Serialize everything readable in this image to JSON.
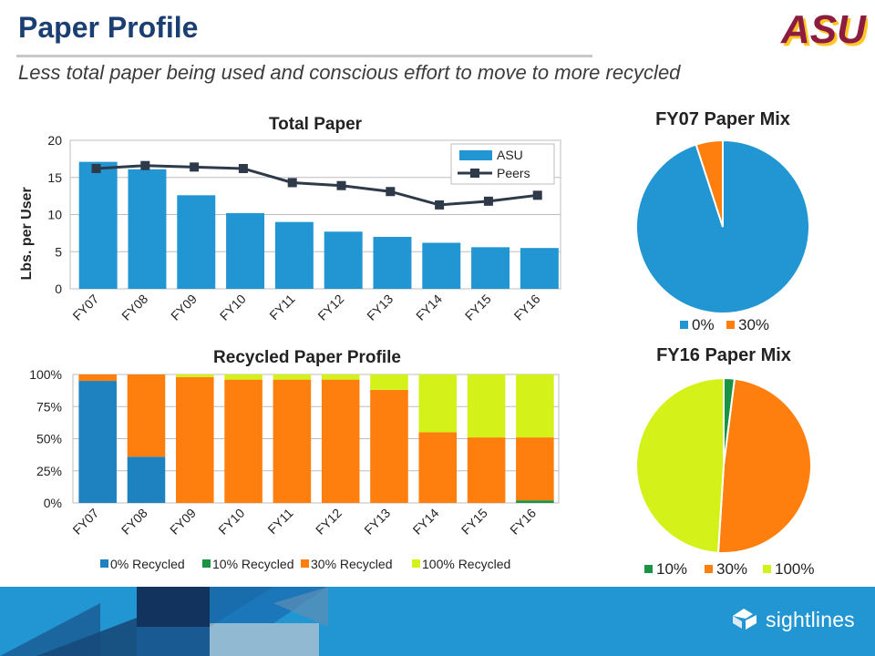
{
  "page": {
    "title": "Paper Profile",
    "subtitle": "Less total paper being used and conscious effort to move to more recycled",
    "logo_text": "ASU",
    "brand_name": "sightlines"
  },
  "colors": {
    "title": "#1b3f73",
    "asu_maroon": "#8c1d40",
    "asu_gold": "#ffc627",
    "asu_bar": "#2196d3",
    "peers_line": "#2e3a4a",
    "recycled_0": "#1f82c0",
    "recycled_10": "#1a9444",
    "recycled_30": "#ff7f0e",
    "recycled_100": "#d4f21a",
    "footer_blue": "#2196d3"
  },
  "icons": {
    "brand_logo": "sightlines-logo-icon"
  },
  "chart_data": [
    {
      "id": "total",
      "type": "bar",
      "title": "Total Paper",
      "ylabel": "Lbs. per User",
      "xlabel": "",
      "categories": [
        "FY07",
        "FY08",
        "FY09",
        "FY10",
        "FY11",
        "FY12",
        "FY13",
        "FY14",
        "FY15",
        "FY16"
      ],
      "series": [
        {
          "name": "ASU",
          "type": "bar",
          "color": "#2196d3",
          "values": [
            17.1,
            16.1,
            12.6,
            10.2,
            9.0,
            7.7,
            7.0,
            6.2,
            5.6,
            5.5
          ]
        },
        {
          "name": "Peers",
          "type": "line",
          "color": "#2e3a4a",
          "values": [
            16.2,
            16.6,
            16.4,
            16.2,
            14.3,
            13.9,
            13.1,
            11.3,
            11.8,
            12.6
          ]
        }
      ],
      "ylim": [
        0,
        20
      ],
      "yticks": [
        "0",
        "5",
        "10",
        "15",
        "20"
      ],
      "grid": true,
      "legend": "top-right"
    },
    {
      "id": "recycled",
      "type": "bar",
      "stacked": true,
      "title": "Recycled Paper Profile",
      "xlabel": "",
      "ylabel": "",
      "categories": [
        "FY07",
        "FY08",
        "FY09",
        "FY10",
        "FY11",
        "FY12",
        "FY13",
        "FY14",
        "FY15",
        "FY16"
      ],
      "series": [
        {
          "name": "0% Recycled",
          "color": "#1f82c0",
          "values": [
            95,
            36,
            0,
            0,
            0,
            0,
            0,
            0,
            0,
            0
          ]
        },
        {
          "name": "10% Recycled",
          "color": "#1a9444",
          "values": [
            0,
            0,
            0,
            0,
            0,
            0,
            0,
            0,
            0,
            2
          ]
        },
        {
          "name": "30% Recycled",
          "color": "#ff7f0e",
          "values": [
            5,
            64,
            98,
            96,
            96,
            96,
            88,
            55,
            51,
            49
          ]
        },
        {
          "name": "100% Recycled",
          "color": "#d4f21a",
          "values": [
            0,
            0,
            2,
            4,
            4,
            4,
            12,
            45,
            49,
            49
          ]
        }
      ],
      "ylim": [
        0,
        100
      ],
      "yticks": [
        "0%",
        "25%",
        "50%",
        "75%",
        "100%"
      ],
      "grid": true,
      "legend": "bottom"
    },
    {
      "id": "fy07mix",
      "type": "pie",
      "title": "FY07 Paper Mix",
      "slices": [
        {
          "label": "0%",
          "value": 95,
          "color": "#2196d3"
        },
        {
          "label": "30%",
          "value": 5,
          "color": "#ff7f0e"
        }
      ],
      "legend": "bottom"
    },
    {
      "id": "fy16mix",
      "type": "pie",
      "title": "FY16 Paper Mix",
      "slices": [
        {
          "label": "10%",
          "value": 2,
          "color": "#1a9444"
        },
        {
          "label": "30%",
          "value": 49,
          "color": "#ff7f0e"
        },
        {
          "label": "100%",
          "value": 49,
          "color": "#d4f21a"
        }
      ],
      "legend": "bottom"
    }
  ]
}
